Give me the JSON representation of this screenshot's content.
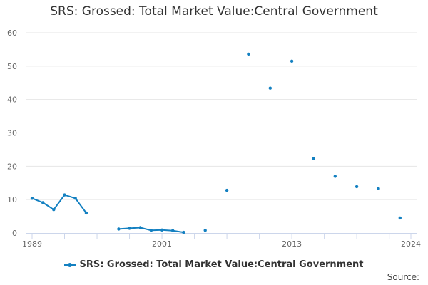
{
  "title": "SRS: Grossed: Total Market Value:Central Government",
  "source_label": "Source:",
  "colors": {
    "series": "#1380c1",
    "grid": "#e6e6e6",
    "axis": "#ccd6eb",
    "tick_text": "#666666"
  },
  "chart_data": {
    "type": "line",
    "title": "SRS: Grossed: Total Market Value:Central Government",
    "xlabel": "",
    "ylabel": "",
    "xlim": [
      1989,
      2024
    ],
    "ylim": [
      0,
      60
    ],
    "yticks": [
      0,
      10,
      20,
      30,
      40,
      50,
      60
    ],
    "xticks_labeled": [
      1989,
      2001,
      2013,
      2024
    ],
    "xticks_minor": [
      1989,
      1992,
      1995,
      1998,
      2001,
      2004,
      2007,
      2010,
      2013,
      2016,
      2019,
      2022,
      2024
    ],
    "grid": true,
    "legend": "bottom-center",
    "series": [
      {
        "name": "SRS: Grossed: Total Market Value:Central Government",
        "points": [
          [
            1989,
            10.4
          ],
          [
            1990,
            9.1
          ],
          [
            1991,
            7.0
          ],
          [
            1992,
            11.4
          ],
          [
            1993,
            10.4
          ],
          [
            1994,
            6.0
          ],
          [
            1995,
            null
          ],
          [
            1996,
            null
          ],
          [
            1997,
            1.2
          ],
          [
            1998,
            1.4
          ],
          [
            1999,
            1.6
          ],
          [
            2000,
            0.8
          ],
          [
            2001,
            0.9
          ],
          [
            2002,
            0.7
          ],
          [
            2003,
            0.2
          ],
          [
            2004,
            null
          ],
          [
            2005,
            0.8
          ],
          [
            2006,
            null
          ],
          [
            2007,
            12.8
          ],
          [
            2008,
            null
          ],
          [
            2009,
            53.6
          ],
          [
            2010,
            null
          ],
          [
            2011,
            43.4
          ],
          [
            2012,
            null
          ],
          [
            2013,
            51.5
          ],
          [
            2014,
            null
          ],
          [
            2015,
            22.3
          ],
          [
            2016,
            null
          ],
          [
            2017,
            17.0
          ],
          [
            2018,
            null
          ],
          [
            2019,
            13.9
          ],
          [
            2020,
            null
          ],
          [
            2021,
            13.3
          ],
          [
            2022,
            null
          ],
          [
            2023,
            4.5
          ]
        ]
      }
    ]
  }
}
